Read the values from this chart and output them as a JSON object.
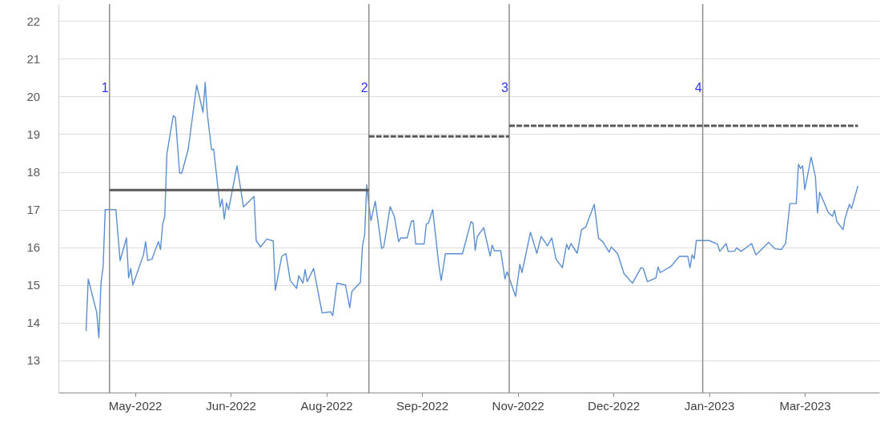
{
  "chart_data": {
    "type": "line",
    "xlim": [
      "2022-03-30",
      "2023-04-20"
    ],
    "ylim": [
      12.15,
      22.45
    ],
    "xticks": [
      {
        "value": "2022-05-05",
        "label": "May-2022"
      },
      {
        "value": "2022-06-19",
        "label": "Jun-2022"
      },
      {
        "value": "2022-08-03",
        "label": "Aug-2022"
      },
      {
        "value": "2022-09-17",
        "label": "Sep-2022"
      },
      {
        "value": "2022-11-01",
        "label": "Nov-2022"
      },
      {
        "value": "2022-12-16",
        "label": "Dec-2022"
      },
      {
        "value": "2023-01-30",
        "label": "Jan-2023"
      },
      {
        "value": "2023-03-16",
        "label": "Mar-2023"
      }
    ],
    "yticks": [
      13,
      14,
      15,
      16,
      17,
      18,
      19,
      20,
      21,
      22
    ],
    "grid": "y",
    "line_style": "solid",
    "ref_lines": [
      {
        "axis": "x",
        "value": "2022-04-23",
        "label": "1",
        "color": "#8c8c8c"
      },
      {
        "axis": "x",
        "value": "2022-08-23",
        "label": "2",
        "color": "#8c8c8c"
      },
      {
        "axis": "x",
        "value": "2022-10-28",
        "label": "3",
        "color": "#8c8c8c"
      },
      {
        "axis": "x",
        "value": "2023-01-27",
        "label": "4",
        "color": "#8c8c8c"
      }
    ],
    "series": [
      {
        "color": "#5b8fd0",
        "x": [
          "2022-04-12",
          "2022-04-13",
          "2022-04-17",
          "2022-04-18",
          "2022-04-19",
          "2022-04-20",
          "2022-04-21",
          "2022-04-26",
          "2022-04-28",
          "2022-05-01",
          "2022-05-02",
          "2022-05-03",
          "2022-05-04",
          "2022-05-09",
          "2022-05-10",
          "2022-05-11",
          "2022-05-13",
          "2022-05-16",
          "2022-05-17",
          "2022-05-18",
          "2022-05-19",
          "2022-05-20",
          "2022-05-23",
          "2022-05-24",
          "2022-05-26",
          "2022-05-27",
          "2022-05-30",
          "2022-06-03",
          "2022-06-06",
          "2022-06-07",
          "2022-06-08",
          "2022-06-10",
          "2022-06-11",
          "2022-06-14",
          "2022-06-15",
          "2022-06-16",
          "2022-06-17",
          "2022-06-18",
          "2022-06-22",
          "2022-06-25",
          "2022-06-30",
          "2022-07-01",
          "2022-07-03",
          "2022-07-06",
          "2022-07-09",
          "2022-07-10",
          "2022-07-13",
          "2022-07-15",
          "2022-07-17",
          "2022-07-20",
          "2022-07-21",
          "2022-07-23",
          "2022-07-24",
          "2022-07-25",
          "2022-07-28",
          "2022-08-01",
          "2022-08-05",
          "2022-08-06",
          "2022-08-08",
          "2022-08-12",
          "2022-08-13",
          "2022-08-14",
          "2022-08-15",
          "2022-08-19",
          "2022-08-20",
          "2022-08-21",
          "2022-08-22",
          "2022-08-23",
          "2022-08-24",
          "2022-08-26",
          "2022-08-29",
          "2022-08-30",
          "2022-09-02",
          "2022-09-04",
          "2022-09-06",
          "2022-09-07",
          "2022-09-10",
          "2022-09-12",
          "2022-09-13",
          "2022-09-14",
          "2022-09-18",
          "2022-09-19",
          "2022-09-20",
          "2022-09-22",
          "2022-09-25",
          "2022-09-26",
          "2022-09-28",
          "2022-10-06",
          "2022-10-10",
          "2022-10-11",
          "2022-10-12",
          "2022-10-13",
          "2022-10-16",
          "2022-10-19",
          "2022-10-20",
          "2022-10-21",
          "2022-10-24",
          "2022-10-26",
          "2022-10-27",
          "2022-10-31",
          "2022-11-02",
          "2022-11-03",
          "2022-11-07",
          "2022-11-10",
          "2022-11-12",
          "2022-11-15",
          "2022-11-17",
          "2022-11-19",
          "2022-11-22",
          "2022-11-24",
          "2022-11-25",
          "2022-11-26",
          "2022-11-29",
          "2022-12-01",
          "2022-12-03",
          "2022-12-07",
          "2022-12-09",
          "2022-12-11",
          "2022-12-14",
          "2022-12-15",
          "2022-12-18",
          "2022-12-21",
          "2022-12-25",
          "2022-12-29",
          "2022-12-30",
          "2023-01-01",
          "2023-01-05",
          "2023-01-06",
          "2023-01-07",
          "2023-01-12",
          "2023-01-16",
          "2023-01-20",
          "2023-01-21",
          "2023-01-22",
          "2023-01-23",
          "2023-01-24",
          "2023-01-30",
          "2023-02-03",
          "2023-02-04",
          "2023-02-07",
          "2023-02-08",
          "2023-02-11",
          "2023-02-12",
          "2023-02-14",
          "2023-02-19",
          "2023-02-21",
          "2023-02-27",
          "2023-03-02",
          "2023-03-05",
          "2023-03-07",
          "2023-03-09",
          "2023-03-12",
          "2023-03-13",
          "2023-03-14",
          "2023-03-15",
          "2023-03-16",
          "2023-03-19",
          "2023-03-21",
          "2023-03-22",
          "2023-03-23",
          "2023-03-27",
          "2023-03-29",
          "2023-03-30",
          "2023-03-31",
          "2023-04-03",
          "2023-04-04",
          "2023-04-06",
          "2023-04-07",
          "2023-04-10"
        ],
        "values": [
          13.78,
          15.16,
          14.27,
          13.6,
          15.06,
          15.48,
          17.0,
          17.0,
          15.65,
          16.25,
          15.19,
          15.44,
          15.0,
          15.8,
          16.15,
          15.65,
          15.69,
          16.15,
          15.94,
          16.61,
          16.82,
          18.48,
          19.49,
          19.44,
          17.97,
          17.97,
          18.59,
          20.3,
          19.58,
          20.37,
          19.54,
          18.59,
          18.6,
          17.07,
          17.28,
          16.75,
          17.18,
          17.0,
          18.16,
          17.07,
          17.35,
          16.18,
          16.01,
          16.22,
          16.17,
          14.86,
          15.76,
          15.83,
          15.12,
          14.91,
          15.25,
          15.05,
          15.41,
          15.09,
          15.44,
          14.26,
          14.29,
          14.19,
          15.05,
          15.0,
          14.7,
          14.4,
          14.83,
          15.07,
          16.04,
          16.33,
          17.66,
          17.1,
          16.71,
          17.22,
          15.97,
          16.01,
          17.08,
          16.81,
          16.15,
          16.25,
          16.25,
          16.69,
          16.71,
          16.09,
          16.09,
          16.61,
          16.64,
          17.0,
          15.48,
          15.12,
          15.83,
          15.83,
          16.68,
          16.64,
          15.92,
          16.29,
          16.52,
          15.77,
          16.06,
          15.91,
          15.91,
          15.16,
          15.35,
          14.7,
          15.55,
          15.33,
          16.4,
          15.84,
          16.29,
          16.04,
          16.25,
          15.69,
          15.46,
          16.08,
          15.94,
          16.1,
          15.84,
          16.47,
          16.54,
          17.14,
          16.24,
          16.15,
          15.87,
          16.01,
          15.83,
          15.3,
          15.05,
          15.46,
          15.44,
          15.09,
          15.19,
          15.48,
          15.33,
          15.49,
          15.76,
          15.76,
          15.46,
          15.8,
          15.7,
          16.18,
          16.18,
          16.08,
          15.89,
          16.1,
          15.89,
          15.9,
          15.99,
          15.89,
          16.1,
          15.8,
          16.13,
          15.96,
          15.94,
          16.11,
          17.16,
          17.16,
          18.2,
          18.09,
          18.16,
          17.53,
          18.39,
          17.87,
          16.91,
          17.46,
          16.93,
          16.82,
          16.98,
          16.69,
          16.47,
          16.78,
          17.14,
          17.03,
          17.63
        ]
      },
      {
        "color": "#595959",
        "line_style": "solid",
        "x": [
          "2022-04-23",
          "2022-08-23"
        ],
        "values": [
          17.52,
          17.52
        ]
      },
      {
        "color": "#595959",
        "line_style": "dashed",
        "x": [
          "2022-08-23",
          "2022-10-28"
        ],
        "values": [
          18.94,
          18.94
        ]
      },
      {
        "color": "#595959",
        "line_style": "dashed",
        "x": [
          "2022-10-28",
          "2023-04-10"
        ],
        "values": [
          19.22,
          19.22
        ]
      }
    ]
  }
}
